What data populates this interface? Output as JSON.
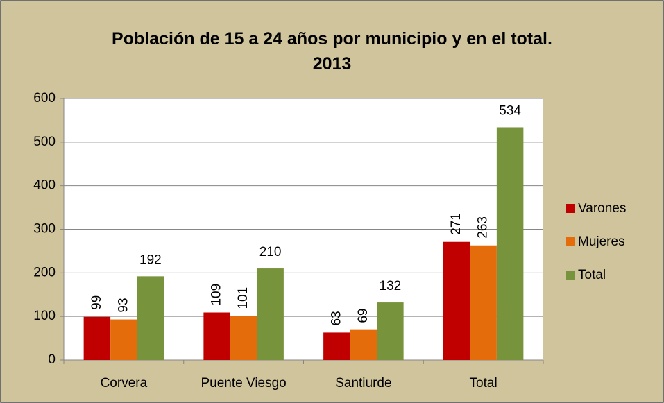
{
  "chart_data": {
    "type": "bar",
    "title": "Población de 15 a 24 años por municipio y en el total.\n2013",
    "categories": [
      "Corvera",
      "Puente Viesgo",
      "Santiurde",
      "Total"
    ],
    "series": [
      {
        "name": "Varones",
        "color": "#c00000",
        "values": [
          99,
          109,
          63,
          271
        ]
      },
      {
        "name": "Mujeres",
        "color": "#e46c0a",
        "values": [
          93,
          101,
          69,
          263
        ]
      },
      {
        "name": "Total",
        "color": "#77933c",
        "values": [
          192,
          210,
          132,
          534
        ]
      }
    ],
    "ylim": [
      0,
      600
    ],
    "yticks": [
      0,
      100,
      200,
      300,
      400,
      500,
      600
    ],
    "grid": true,
    "legend": "right"
  }
}
